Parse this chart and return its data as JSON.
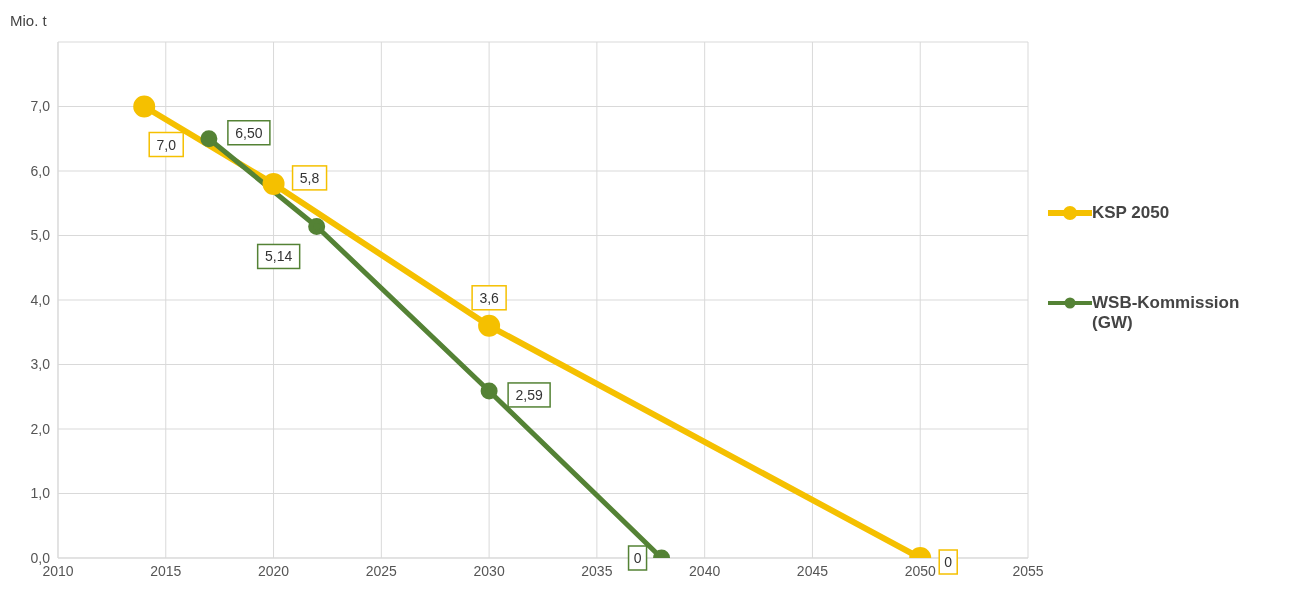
{
  "chart_data": {
    "type": "line",
    "ylabel": "Mio. t",
    "series": [
      {
        "name": "KSP 2050",
        "color": "#f5c000",
        "x": [
          2014,
          2020,
          2030,
          2050
        ],
        "values": [
          7.0,
          5.8,
          3.6,
          0
        ],
        "value_labels": [
          "7,0",
          "5,8",
          "3,6",
          "0"
        ]
      },
      {
        "name": "WSB-Kommission (GW)",
        "color": "#548235",
        "x": [
          2017,
          2022,
          2030,
          2038
        ],
        "values": [
          6.5,
          5.14,
          2.59,
          0
        ],
        "value_labels": [
          "6,50",
          "5,14",
          "2,59",
          "0"
        ]
      }
    ],
    "xlim": [
      2010,
      2055
    ],
    "xticks": [
      2010,
      2015,
      2020,
      2025,
      2030,
      2035,
      2040,
      2045,
      2050,
      2055
    ],
    "ylim": [
      0,
      8
    ],
    "yticks": [
      {
        "value": 0,
        "label": "0,0"
      },
      {
        "value": 1,
        "label": "1,0"
      },
      {
        "value": 2,
        "label": "2,0"
      },
      {
        "value": 3,
        "label": "3,0"
      },
      {
        "value": 4,
        "label": "4,0"
      },
      {
        "value": 5,
        "label": "5,0"
      },
      {
        "value": 6,
        "label": "6,0"
      },
      {
        "value": 7,
        "label": "7,0"
      },
      {
        "value": 8,
        "label": null
      }
    ],
    "grid": true,
    "legend": "right",
    "marker": "circle",
    "line_style": "solid"
  }
}
